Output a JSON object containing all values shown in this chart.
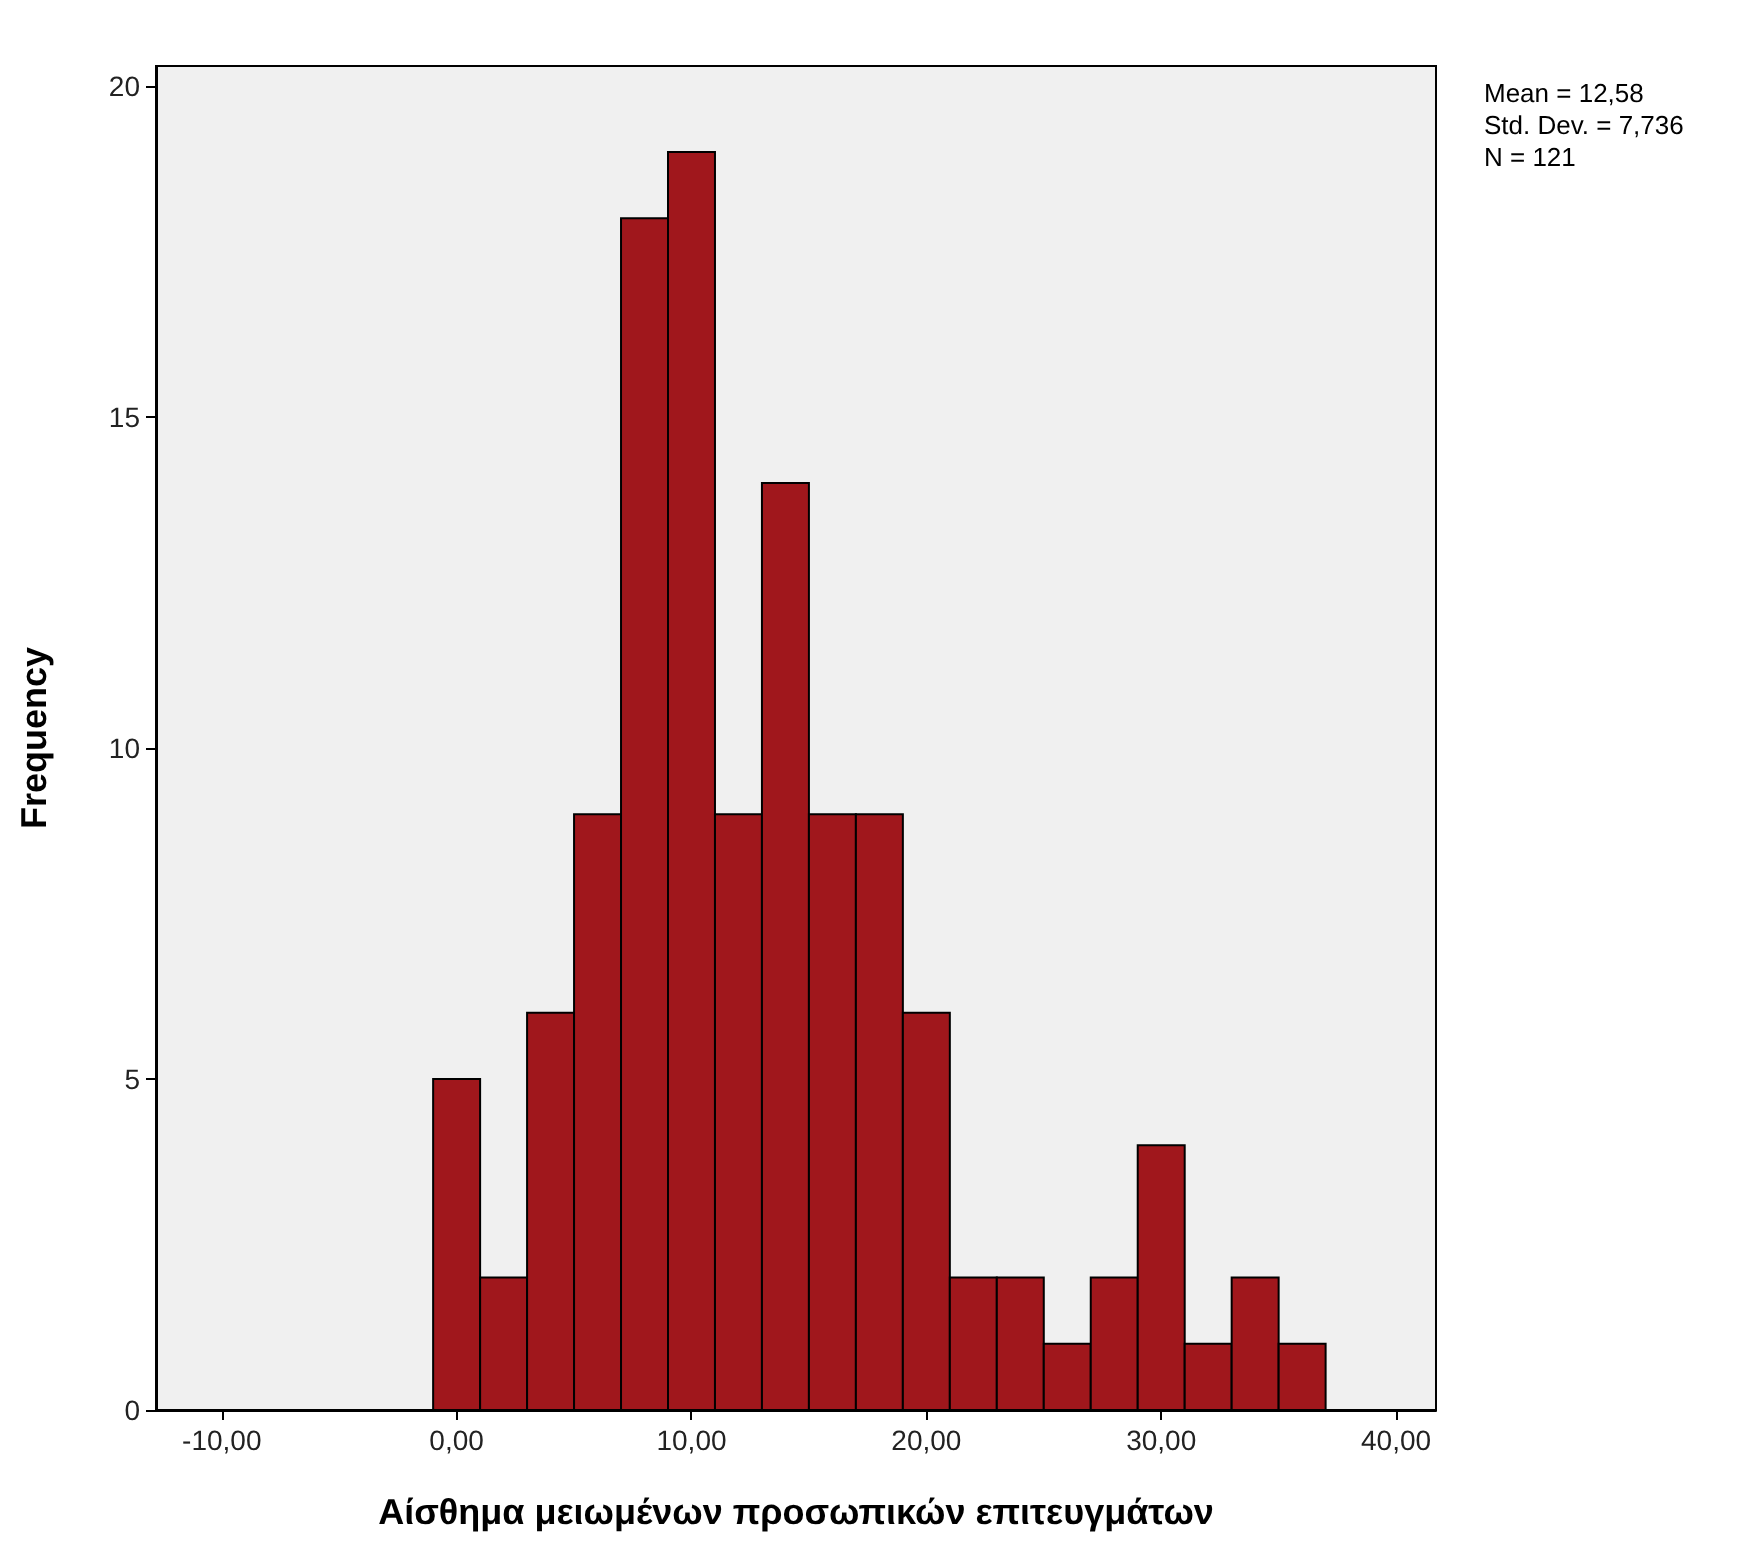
{
  "chart_data": {
    "type": "histogram",
    "xlabel": "Αίσθημα μειωμένων προσωπικών επιτευγμάτων",
    "ylabel": "Frequency",
    "bins": [
      -1,
      1,
      3,
      5,
      7,
      9,
      11,
      13,
      15,
      17,
      19,
      21,
      23,
      25,
      27,
      29,
      31,
      33,
      35,
      37
    ],
    "values": [
      5,
      2,
      6,
      9,
      18,
      19,
      9,
      14,
      9,
      9,
      6,
      2,
      2,
      1,
      2,
      4,
      1,
      2,
      1
    ],
    "color": "#a0171c",
    "xlim": [
      -12.8,
      41.7
    ],
    "xticks": [
      {
        "value": -10,
        "label": "-10,00"
      },
      {
        "value": 0,
        "label": "0,00"
      },
      {
        "value": 10,
        "label": "10,00"
      },
      {
        "value": 20,
        "label": "20,00"
      },
      {
        "value": 30,
        "label": "30,00"
      },
      {
        "value": 40,
        "label": "40,00"
      }
    ],
    "ylim": [
      0,
      20.3
    ],
    "yticks": [
      0,
      5,
      10,
      15,
      20
    ],
    "annotations": [
      "Mean = 12,58",
      "Std. Dev. = 7,736",
      "N = 121"
    ]
  }
}
